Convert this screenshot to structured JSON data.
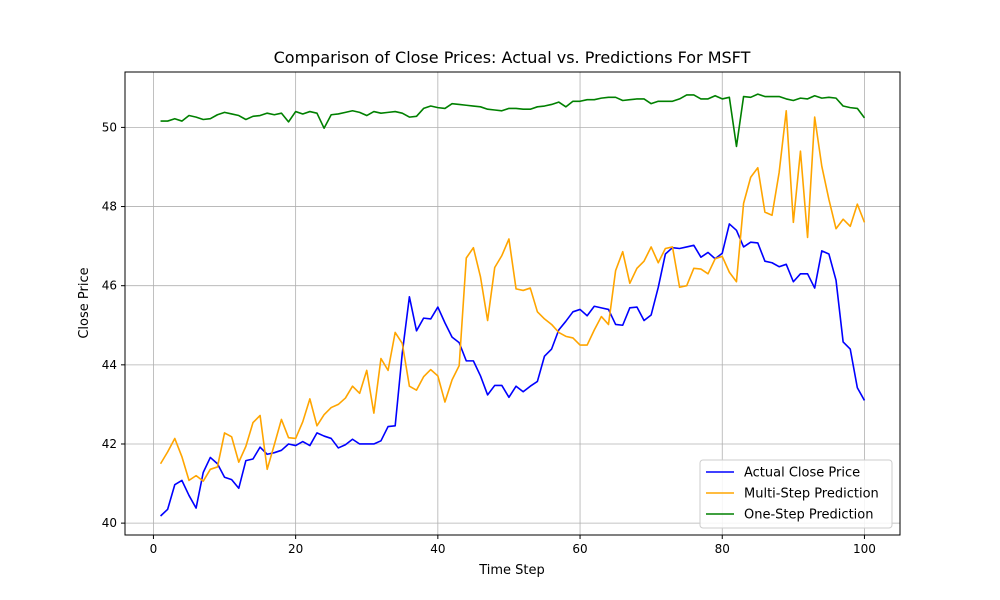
{
  "chart_data": {
    "type": "line",
    "title": "Comparison of Close Prices: Actual vs. Predictions For MSFT",
    "xlabel": "Time Step",
    "ylabel": "Close Price",
    "xlim": [
      -4,
      105
    ],
    "ylim": [
      39.7,
      51.4
    ],
    "xticks": [
      0,
      20,
      40,
      60,
      80,
      100
    ],
    "yticks": [
      40,
      42,
      44,
      46,
      48,
      50
    ],
    "grid": true,
    "legend_position": "lower-right",
    "x": [
      1,
      2,
      3,
      4,
      5,
      6,
      7,
      8,
      9,
      10,
      11,
      12,
      13,
      14,
      15,
      16,
      17,
      18,
      19,
      20,
      21,
      22,
      23,
      24,
      25,
      26,
      27,
      28,
      29,
      30,
      31,
      32,
      33,
      34,
      35,
      36,
      37,
      38,
      39,
      40,
      41,
      42,
      43,
      44,
      45,
      46,
      47,
      48,
      49,
      50,
      51,
      52,
      53,
      54,
      55,
      56,
      57,
      58,
      59,
      60,
      61,
      62,
      63,
      64,
      65,
      66,
      67,
      68,
      69,
      70,
      71,
      72,
      73,
      74,
      75,
      76,
      77,
      78,
      79,
      80,
      81,
      82,
      83,
      84,
      85,
      86,
      87,
      88,
      89,
      90,
      91,
      92,
      93,
      94,
      95,
      96,
      97,
      98,
      99,
      100
    ],
    "series": [
      {
        "name": "Actual Close Price",
        "color": "#0000ff",
        "values": [
          40.18,
          40.35,
          40.97,
          41.08,
          40.7,
          40.38,
          41.28,
          41.66,
          41.5,
          41.16,
          41.1,
          40.88,
          41.58,
          41.62,
          41.92,
          41.74,
          41.78,
          41.84,
          42.0,
          41.96,
          42.06,
          41.96,
          42.28,
          42.2,
          42.14,
          41.9,
          41.98,
          42.12,
          42.0,
          42.0,
          42.0,
          42.08,
          42.44,
          42.46,
          44.3,
          45.72,
          44.86,
          45.18,
          45.16,
          45.46,
          45.06,
          44.7,
          44.56,
          44.1,
          44.1,
          43.72,
          43.24,
          43.48,
          43.48,
          43.18,
          43.46,
          43.32,
          43.46,
          43.58,
          44.22,
          44.4,
          44.88,
          45.1,
          45.34,
          45.4,
          45.24,
          45.48,
          45.44,
          45.4,
          45.02,
          45.0,
          45.44,
          45.46,
          45.12,
          45.26,
          45.96,
          46.8,
          46.96,
          46.94,
          46.98,
          47.02,
          46.72,
          46.84,
          46.68,
          46.82,
          47.56,
          47.4,
          46.98,
          47.1,
          47.08,
          46.62,
          46.58,
          46.48,
          46.54,
          46.1,
          46.3,
          46.3,
          45.94,
          46.88,
          46.8,
          46.14,
          44.58,
          44.4,
          43.42,
          43.1
        ]
      },
      {
        "name": "Multi-Step Prediction",
        "color": "#ffa500",
        "values": [
          41.5,
          41.8,
          42.14,
          41.68,
          41.08,
          41.2,
          41.06,
          41.36,
          41.42,
          42.28,
          42.18,
          41.54,
          41.94,
          42.54,
          42.72,
          41.36,
          41.98,
          42.62,
          42.16,
          42.14,
          42.56,
          43.14,
          42.46,
          42.74,
          42.92,
          43.0,
          43.16,
          43.46,
          43.28,
          43.86,
          42.78,
          44.16,
          43.86,
          44.82,
          44.54,
          43.46,
          43.36,
          43.7,
          43.88,
          43.72,
          43.06,
          43.62,
          43.98,
          46.7,
          46.96,
          46.22,
          45.12,
          46.46,
          46.76,
          47.18,
          45.92,
          45.88,
          45.94,
          45.34,
          45.16,
          45.02,
          44.82,
          44.72,
          44.68,
          44.5,
          44.5,
          44.88,
          45.22,
          45.02,
          46.38,
          46.86,
          46.06,
          46.44,
          46.62,
          46.98,
          46.58,
          46.94,
          46.98,
          45.96,
          46.0,
          46.44,
          46.42,
          46.3,
          46.68,
          46.74,
          46.34,
          46.1,
          48.08,
          48.74,
          48.98,
          47.86,
          47.78,
          48.86,
          50.42,
          47.6,
          49.4,
          47.22,
          50.26,
          49.02,
          48.18,
          47.44,
          47.68,
          47.5,
          48.06,
          47.6
        ]
      },
      {
        "name": "One-Step Prediction",
        "color": "#008000",
        "values": [
          50.16,
          50.16,
          50.22,
          50.16,
          50.3,
          50.26,
          50.2,
          50.22,
          50.32,
          50.38,
          50.34,
          50.3,
          50.2,
          50.28,
          50.3,
          50.36,
          50.32,
          50.36,
          50.14,
          50.4,
          50.34,
          50.4,
          50.36,
          49.98,
          50.32,
          50.34,
          50.38,
          50.42,
          50.38,
          50.3,
          50.4,
          50.36,
          50.38,
          50.4,
          50.36,
          50.26,
          50.28,
          50.48,
          50.54,
          50.5,
          50.48,
          50.6,
          50.58,
          50.56,
          50.54,
          50.52,
          50.46,
          50.44,
          50.42,
          50.48,
          50.48,
          50.46,
          50.46,
          50.52,
          50.54,
          50.58,
          50.64,
          50.52,
          50.66,
          50.66,
          50.7,
          50.7,
          50.74,
          50.76,
          50.76,
          50.68,
          50.7,
          50.72,
          50.72,
          50.6,
          50.66,
          50.66,
          50.66,
          50.72,
          50.82,
          50.82,
          50.72,
          50.72,
          50.8,
          50.72,
          50.76,
          49.52,
          50.78,
          50.76,
          50.84,
          50.78,
          50.78,
          50.78,
          50.72,
          50.68,
          50.74,
          50.72,
          50.8,
          50.74,
          50.76,
          50.74,
          50.54,
          50.5,
          50.48,
          50.24
        ]
      }
    ]
  }
}
